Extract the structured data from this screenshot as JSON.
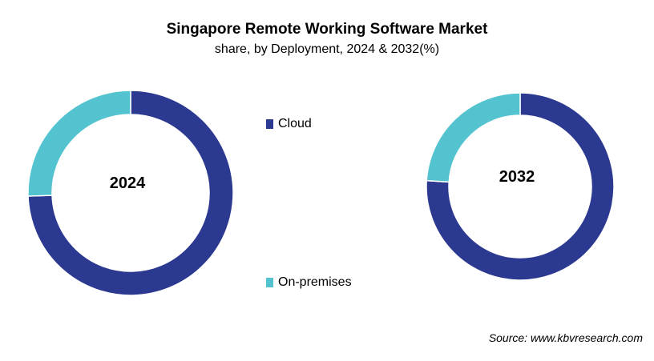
{
  "chart_data": {
    "type": "pie",
    "variant": "donut",
    "title": "Singapore Remote Working Software Market",
    "subtitle": "share, by Deployment, 2024 & 2032(%)",
    "categories": [
      "Cloud",
      "On-premises"
    ],
    "colors": [
      "#2b3990",
      "#52c3cf"
    ],
    "charts": [
      {
        "label": "2024",
        "values": [
          74.5,
          25.5
        ]
      },
      {
        "label": "2032",
        "values": [
          76,
          24
        ]
      }
    ],
    "legend": "center",
    "source": "Source: www.kbvresearch.com"
  }
}
